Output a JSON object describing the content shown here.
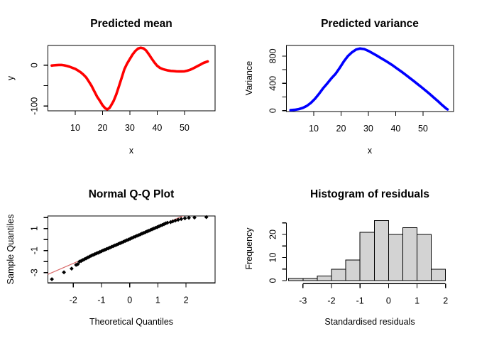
{
  "figure": {
    "background": "#ffffff",
    "grid": "off",
    "layout": "2x2 R base graphics panel"
  },
  "chart_data": "see charts",
  "charts": [
    {
      "id": "predicted-mean",
      "type": "line",
      "title": "Predicted mean",
      "xlabel": "x",
      "ylabel": "y",
      "color": "#ff0000",
      "line_width": 3.6,
      "xlim": [
        0,
        61.2
      ],
      "ylim": [
        -111.6,
        48.1
      ],
      "xticks": {
        "at": [
          10,
          20,
          30,
          40,
          50
        ],
        "labels": [
          "10",
          "20",
          "30",
          "40",
          "50"
        ]
      },
      "yticks": {
        "at": [
          0,
          -50,
          -100
        ],
        "labels": [
          "0",
          "",
          "-100"
        ]
      },
      "x": [
        1.4,
        2,
        3,
        4,
        5,
        6,
        7,
        8,
        9,
        10,
        11,
        12,
        13,
        14,
        15,
        16,
        17,
        18,
        19,
        20,
        21,
        21.7,
        22.5,
        23,
        24,
        25,
        26,
        27,
        28,
        29,
        30,
        31,
        32,
        33,
        34,
        35,
        36,
        37,
        38,
        39,
        40,
        41,
        42,
        43,
        44,
        45,
        46,
        47,
        48,
        49,
        50,
        51,
        52,
        53,
        54,
        55,
        56,
        57,
        58.5
      ],
      "y": [
        -1,
        -0.5,
        0,
        0.5,
        0.5,
        -0.5,
        -2,
        -4,
        -6.5,
        -9,
        -13,
        -17.5,
        -23,
        -30,
        -40,
        -51,
        -64,
        -77,
        -87,
        -98,
        -105.5,
        -108,
        -105,
        -100,
        -88,
        -72,
        -52,
        -31,
        -10,
        4,
        15,
        26,
        34.5,
        40.5,
        42.5,
        41,
        35.5,
        26,
        16,
        6.5,
        -1.5,
        -6.5,
        -9.5,
        -11.5,
        -13,
        -14,
        -14.5,
        -15,
        -15.5,
        -15.5,
        -15,
        -13.5,
        -11.5,
        -8.5,
        -5,
        -1.5,
        2,
        5.5,
        9
      ]
    },
    {
      "id": "predicted-variance",
      "type": "line",
      "title": "Predicted variance",
      "xlabel": "x",
      "ylabel": "Variance",
      "color": "#0000ff",
      "line_width": 3.6,
      "xlim": [
        0,
        61.2
      ],
      "ylim": [
        -13.5,
        955
      ],
      "xticks": {
        "at": [
          10,
          20,
          30,
          40,
          50
        ],
        "labels": [
          "10",
          "20",
          "30",
          "40",
          "50"
        ]
      },
      "yticks": {
        "at": [
          0,
          200,
          400,
          600,
          800
        ],
        "labels": [
          "0",
          "",
          "400",
          "",
          "800"
        ]
      },
      "x": [
        1.5,
        3,
        4.5,
        6,
        7.5,
        9,
        10.5,
        12,
        13.5,
        15,
        16.5,
        18,
        19.5,
        21,
        22.5,
        24,
        25.5,
        27,
        28.5,
        30,
        31.5,
        33,
        34.5,
        36,
        37.5,
        39,
        40.5,
        42,
        43.5,
        45,
        46.5,
        48,
        49.5,
        51,
        52.5,
        54,
        55.5,
        57,
        58.5,
        59
      ],
      "y": [
        6,
        12,
        22,
        40,
        70,
        115,
        175,
        250,
        330,
        400,
        475,
        540,
        625,
        720,
        800,
        855,
        895,
        910,
        902,
        876,
        843,
        808,
        772,
        737,
        700,
        660,
        618,
        575,
        530,
        483,
        437,
        390,
        342,
        293,
        243,
        190,
        138,
        82,
        30,
        18
      ]
    },
    {
      "id": "qq-plot",
      "type": "scatter",
      "title": "Normal Q-Q Plot",
      "xlabel": "Theoretical Quantiles",
      "ylabel": "Sample Quantiles",
      "point_color": "#000000",
      "point_shape": "diamond",
      "refline": {
        "slope": 1.107,
        "intercept": 0.05,
        "color": "#d96a6a"
      },
      "xlim": [
        -2.9,
        3.03
      ],
      "ylim": [
        -3.94,
        2.14
      ],
      "xticks": {
        "at": [
          -2,
          -1,
          0,
          1,
          2
        ],
        "labels": [
          "-2",
          "-1",
          "0",
          "1",
          "2"
        ]
      },
      "yticks": {
        "at": [
          -3,
          -2,
          -1,
          0,
          1,
          2
        ],
        "labels": [
          "-3",
          "",
          "-1",
          "",
          "1",
          ""
        ]
      },
      "points": [
        [
          -2.76,
          -3.6
        ],
        [
          -2.33,
          -2.97
        ],
        [
          -2.06,
          -2.64
        ],
        [
          -1.9,
          -2.3
        ],
        [
          -1.84,
          -2.24
        ],
        [
          -1.78,
          -2.0
        ],
        [
          -1.72,
          -1.94
        ],
        [
          -1.66,
          -1.86
        ],
        [
          -1.6,
          -1.78
        ],
        [
          -1.54,
          -1.7
        ],
        [
          -1.48,
          -1.62
        ],
        [
          -1.42,
          -1.54
        ],
        [
          -1.36,
          -1.46
        ],
        [
          -1.3,
          -1.4
        ],
        [
          -1.24,
          -1.33
        ],
        [
          -1.18,
          -1.26
        ],
        [
          -1.12,
          -1.2
        ],
        [
          -1.06,
          -1.13
        ],
        [
          -1.0,
          -1.06
        ],
        [
          -0.94,
          -0.99
        ],
        [
          -0.88,
          -0.93
        ],
        [
          -0.82,
          -0.86
        ],
        [
          -0.76,
          -0.8
        ],
        [
          -0.7,
          -0.73
        ],
        [
          -0.64,
          -0.66
        ],
        [
          -0.58,
          -0.6
        ],
        [
          -0.52,
          -0.53
        ],
        [
          -0.46,
          -0.47
        ],
        [
          -0.4,
          -0.4
        ],
        [
          -0.34,
          -0.33
        ],
        [
          -0.28,
          -0.27
        ],
        [
          -0.22,
          -0.2
        ],
        [
          -0.16,
          -0.13
        ],
        [
          -0.1,
          -0.06
        ],
        [
          -0.04,
          0.0
        ],
        [
          0.02,
          0.07
        ],
        [
          0.08,
          0.14
        ],
        [
          0.14,
          0.21
        ],
        [
          0.2,
          0.27
        ],
        [
          0.26,
          0.34
        ],
        [
          0.32,
          0.4
        ],
        [
          0.38,
          0.47
        ],
        [
          0.44,
          0.54
        ],
        [
          0.5,
          0.6
        ],
        [
          0.56,
          0.67
        ],
        [
          0.62,
          0.74
        ],
        [
          0.68,
          0.8
        ],
        [
          0.74,
          0.87
        ],
        [
          0.8,
          0.94
        ],
        [
          0.86,
          1.0
        ],
        [
          0.92,
          1.07
        ],
        [
          0.98,
          1.13
        ],
        [
          1.04,
          1.2
        ],
        [
          1.1,
          1.27
        ],
        [
          1.16,
          1.33
        ],
        [
          1.22,
          1.4
        ],
        [
          1.28,
          1.47
        ],
        [
          1.34,
          1.53
        ],
        [
          1.45,
          1.58
        ],
        [
          1.53,
          1.65
        ],
        [
          1.62,
          1.72
        ],
        [
          1.72,
          1.79
        ],
        [
          1.83,
          1.86
        ],
        [
          1.96,
          1.93
        ],
        [
          2.1,
          1.97
        ],
        [
          2.3,
          2.0
        ],
        [
          2.72,
          2.04
        ]
      ]
    },
    {
      "id": "residual-histogram",
      "type": "hist",
      "title": "Histogram of residuals",
      "xlabel": "Standardised residuals",
      "ylabel": "Frequency",
      "bar_fill": "#d3d3d3",
      "bar_stroke": "#000000",
      "breaks_start": -3.5,
      "bin_width": 0.5,
      "counts": [
        1,
        1,
        2,
        5,
        9,
        21,
        26,
        20,
        23,
        20,
        5
      ],
      "xlim": [
        -3.58,
        2.28
      ],
      "ylim": [
        0,
        28
      ],
      "xticks": {
        "at": [
          -3,
          -2,
          -1,
          0,
          1,
          2
        ],
        "labels": [
          "-3",
          "-2",
          "-1",
          "0",
          "1",
          "2"
        ]
      },
      "yticks": {
        "at": [
          0,
          5,
          10,
          15,
          20,
          25
        ],
        "labels": [
          "0",
          "",
          "10",
          "",
          "20",
          ""
        ]
      }
    }
  ]
}
